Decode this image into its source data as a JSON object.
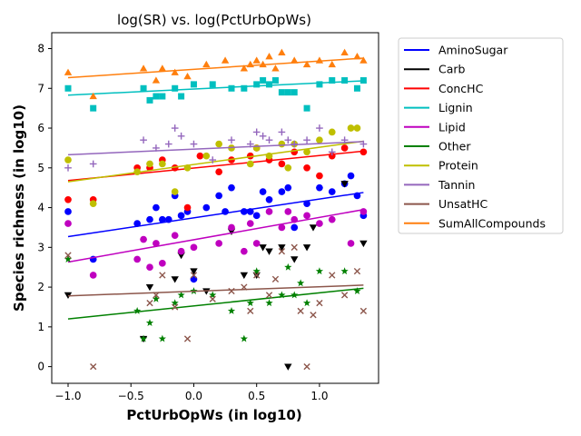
{
  "chart_data": {
    "type": "scatter",
    "title": "log(SR) vs. log(PctUrbOpWs)",
    "xlabel": "PctUrbOpWs (in log10)",
    "ylabel": "Species richness (in log10)",
    "xlim": [
      -1.13,
      1.47
    ],
    "ylim": [
      -0.42,
      8.4
    ],
    "xticks": [
      "−1.0",
      "−0.5",
      "0.0",
      "0.5",
      "1.0"
    ],
    "xtick_values": [
      -1.0,
      -0.5,
      0.0,
      0.5,
      1.0
    ],
    "yticks": [
      "0",
      "1",
      "2",
      "3",
      "4",
      "5",
      "6",
      "7",
      "8"
    ],
    "ytick_values": [
      0,
      1,
      2,
      3,
      4,
      5,
      6,
      7,
      8
    ],
    "grid": false,
    "legend_position": "outside-right",
    "series": [
      {
        "name": "AminoSugar",
        "color": "#0000ff",
        "marker": "circle",
        "fit": [
          3.27,
          4.38
        ],
        "points": [
          [
            -1.0,
            3.9
          ],
          [
            -0.8,
            2.7
          ],
          [
            -0.45,
            3.6
          ],
          [
            -0.35,
            3.7
          ],
          [
            -0.3,
            4.0
          ],
          [
            -0.25,
            3.7
          ],
          [
            -0.2,
            3.7
          ],
          [
            -0.15,
            4.3
          ],
          [
            -0.1,
            3.8
          ],
          [
            -0.05,
            3.9
          ],
          [
            0.0,
            2.2
          ],
          [
            0.1,
            4.0
          ],
          [
            0.2,
            4.3
          ],
          [
            0.25,
            3.9
          ],
          [
            0.3,
            4.5
          ],
          [
            0.4,
            3.9
          ],
          [
            0.45,
            3.9
          ],
          [
            0.5,
            3.8
          ],
          [
            0.55,
            4.4
          ],
          [
            0.6,
            4.2
          ],
          [
            0.7,
            4.4
          ],
          [
            0.75,
            4.5
          ],
          [
            0.8,
            3.5
          ],
          [
            0.9,
            4.1
          ],
          [
            1.0,
            4.5
          ],
          [
            1.1,
            4.4
          ],
          [
            1.2,
            4.6
          ],
          [
            1.25,
            4.8
          ],
          [
            1.3,
            4.3
          ],
          [
            1.35,
            3.8
          ]
        ]
      },
      {
        "name": "Carb",
        "color": "#000000",
        "marker": "triangle-down",
        "fit": [
          null,
          null
        ],
        "points": [
          [
            -1.0,
            1.8
          ],
          [
            -0.4,
            0.7
          ],
          [
            -0.35,
            2.0
          ],
          [
            -0.15,
            2.2
          ],
          [
            -0.1,
            2.8
          ],
          [
            0.0,
            2.4
          ],
          [
            0.1,
            1.9
          ],
          [
            0.3,
            3.4
          ],
          [
            0.4,
            2.3
          ],
          [
            0.5,
            2.3
          ],
          [
            0.55,
            3.0
          ],
          [
            0.6,
            2.9
          ],
          [
            0.7,
            3.0
          ],
          [
            0.75,
            0.0
          ],
          [
            0.8,
            2.7
          ],
          [
            0.9,
            3.0
          ],
          [
            0.95,
            3.5
          ],
          [
            1.2,
            4.6
          ],
          [
            1.35,
            3.1
          ]
        ]
      },
      {
        "name": "ConcHC",
        "color": "#ff0000",
        "marker": "circle",
        "fit": [
          4.68,
          5.42
        ],
        "points": [
          [
            -1.0,
            4.2
          ],
          [
            -0.8,
            4.2
          ],
          [
            -0.45,
            5.0
          ],
          [
            -0.35,
            5.0
          ],
          [
            -0.25,
            5.2
          ],
          [
            -0.15,
            5.0
          ],
          [
            -0.05,
            4.0
          ],
          [
            0.05,
            5.3
          ],
          [
            0.2,
            4.9
          ],
          [
            0.3,
            5.2
          ],
          [
            0.45,
            5.3
          ],
          [
            0.5,
            5.5
          ],
          [
            0.6,
            5.2
          ],
          [
            0.7,
            5.1
          ],
          [
            0.8,
            5.4
          ],
          [
            0.9,
            5.0
          ],
          [
            1.0,
            4.8
          ],
          [
            1.1,
            5.3
          ],
          [
            1.2,
            5.5
          ],
          [
            1.35,
            5.4
          ]
        ]
      },
      {
        "name": "Lignin",
        "color": "#00bfbf",
        "marker": "square",
        "fit": [
          6.83,
          7.19
        ],
        "points": [
          [
            -1.0,
            7.0
          ],
          [
            -0.8,
            6.5
          ],
          [
            -0.4,
            7.0
          ],
          [
            -0.35,
            6.7
          ],
          [
            -0.3,
            6.8
          ],
          [
            -0.25,
            6.8
          ],
          [
            -0.15,
            7.0
          ],
          [
            -0.1,
            6.8
          ],
          [
            0.0,
            7.1
          ],
          [
            0.15,
            7.1
          ],
          [
            0.3,
            7.0
          ],
          [
            0.4,
            7.0
          ],
          [
            0.5,
            7.1
          ],
          [
            0.55,
            7.2
          ],
          [
            0.6,
            7.1
          ],
          [
            0.65,
            7.2
          ],
          [
            0.7,
            6.9
          ],
          [
            0.75,
            6.9
          ],
          [
            0.8,
            6.9
          ],
          [
            0.9,
            6.5
          ],
          [
            1.0,
            7.1
          ],
          [
            1.1,
            7.2
          ],
          [
            1.2,
            7.2
          ],
          [
            1.3,
            7.0
          ],
          [
            1.35,
            7.2
          ]
        ]
      },
      {
        "name": "Lipid",
        "color": "#bf00bf",
        "marker": "circle",
        "fit": [
          2.63,
          3.95
        ],
        "points": [
          [
            -1.0,
            3.6
          ],
          [
            -0.8,
            2.3
          ],
          [
            -0.45,
            2.7
          ],
          [
            -0.4,
            3.2
          ],
          [
            -0.35,
            2.5
          ],
          [
            -0.3,
            3.1
          ],
          [
            -0.25,
            2.6
          ],
          [
            -0.15,
            3.3
          ],
          [
            -0.1,
            2.9
          ],
          [
            0.0,
            3.0
          ],
          [
            0.2,
            3.1
          ],
          [
            0.3,
            3.5
          ],
          [
            0.4,
            2.9
          ],
          [
            0.45,
            3.6
          ],
          [
            0.5,
            3.1
          ],
          [
            0.6,
            3.9
          ],
          [
            0.7,
            3.5
          ],
          [
            0.75,
            3.9
          ],
          [
            0.8,
            3.7
          ],
          [
            0.9,
            3.8
          ],
          [
            1.0,
            3.6
          ],
          [
            1.1,
            3.7
          ],
          [
            1.25,
            3.1
          ],
          [
            1.35,
            3.9
          ]
        ]
      },
      {
        "name": "Other",
        "color": "#008000",
        "marker": "star",
        "fit": [
          1.2,
          1.97
        ],
        "points": [
          [
            -1.0,
            2.7
          ],
          [
            -0.45,
            1.4
          ],
          [
            -0.4,
            0.7
          ],
          [
            -0.35,
            1.1
          ],
          [
            -0.3,
            1.7
          ],
          [
            -0.25,
            0.7
          ],
          [
            -0.15,
            1.6
          ],
          [
            -0.1,
            1.8
          ],
          [
            0.0,
            1.9
          ],
          [
            0.15,
            1.8
          ],
          [
            0.3,
            1.4
          ],
          [
            0.4,
            0.7
          ],
          [
            0.45,
            1.6
          ],
          [
            0.5,
            2.4
          ],
          [
            0.6,
            1.6
          ],
          [
            0.7,
            1.8
          ],
          [
            0.75,
            2.5
          ],
          [
            0.8,
            1.8
          ],
          [
            0.85,
            2.1
          ],
          [
            0.9,
            1.6
          ],
          [
            1.0,
            2.4
          ],
          [
            1.2,
            2.4
          ],
          [
            1.3,
            1.9
          ]
        ]
      },
      {
        "name": "Protein",
        "color": "#bfbf00",
        "marker": "circle",
        "fit": [
          4.65,
          5.67
        ],
        "points": [
          [
            -1.0,
            5.2
          ],
          [
            -0.8,
            4.1
          ],
          [
            -0.45,
            4.9
          ],
          [
            -0.35,
            5.1
          ],
          [
            -0.25,
            5.1
          ],
          [
            -0.15,
            4.4
          ],
          [
            -0.05,
            5.0
          ],
          [
            0.1,
            5.3
          ],
          [
            0.2,
            5.6
          ],
          [
            0.3,
            5.5
          ],
          [
            0.45,
            5.1
          ],
          [
            0.5,
            5.5
          ],
          [
            0.6,
            5.3
          ],
          [
            0.7,
            5.6
          ],
          [
            0.75,
            5.0
          ],
          [
            0.8,
            5.6
          ],
          [
            0.9,
            5.4
          ],
          [
            1.0,
            5.7
          ],
          [
            1.1,
            5.9
          ],
          [
            1.25,
            6.0
          ],
          [
            1.3,
            6.0
          ]
        ]
      },
      {
        "name": "Tannin",
        "color": "#9467bd",
        "marker": "plus",
        "fit": [
          5.33,
          5.66
        ],
        "points": [
          [
            -1.0,
            5.0
          ],
          [
            -0.8,
            5.1
          ],
          [
            -0.4,
            5.7
          ],
          [
            -0.3,
            5.5
          ],
          [
            -0.2,
            5.6
          ],
          [
            -0.15,
            6.0
          ],
          [
            -0.1,
            5.8
          ],
          [
            0.0,
            5.6
          ],
          [
            0.15,
            5.2
          ],
          [
            0.3,
            5.7
          ],
          [
            0.45,
            5.6
          ],
          [
            0.5,
            5.9
          ],
          [
            0.55,
            5.8
          ],
          [
            0.6,
            5.7
          ],
          [
            0.7,
            5.9
          ],
          [
            0.75,
            5.7
          ],
          [
            0.8,
            5.6
          ],
          [
            0.9,
            5.7
          ],
          [
            1.0,
            6.0
          ],
          [
            1.1,
            5.4
          ],
          [
            1.2,
            5.7
          ],
          [
            1.35,
            5.6
          ]
        ]
      },
      {
        "name": "UnsatHC",
        "color": "#8c564b",
        "marker": "x",
        "fit": [
          1.78,
          2.05
        ],
        "points": [
          [
            -1.0,
            2.8
          ],
          [
            -0.8,
            0.0
          ],
          [
            -0.35,
            1.6
          ],
          [
            -0.3,
            1.8
          ],
          [
            -0.25,
            2.3
          ],
          [
            -0.15,
            1.5
          ],
          [
            -0.05,
            0.7
          ],
          [
            0.0,
            2.3
          ],
          [
            0.15,
            1.7
          ],
          [
            0.3,
            1.9
          ],
          [
            0.4,
            2.0
          ],
          [
            0.45,
            1.4
          ],
          [
            0.5,
            2.3
          ],
          [
            0.6,
            1.8
          ],
          [
            0.65,
            2.2
          ],
          [
            0.7,
            2.9
          ],
          [
            0.8,
            3.0
          ],
          [
            0.85,
            1.4
          ],
          [
            0.9,
            0.0
          ],
          [
            0.95,
            1.3
          ],
          [
            1.0,
            1.6
          ],
          [
            1.1,
            2.3
          ],
          [
            1.2,
            1.8
          ],
          [
            1.3,
            2.4
          ],
          [
            1.35,
            1.4
          ]
        ]
      },
      {
        "name": "SumAllCompounds",
        "color": "#ff7f0e",
        "marker": "triangle-up",
        "fit": [
          7.27,
          7.76
        ],
        "points": [
          [
            -1.0,
            7.4
          ],
          [
            -0.8,
            6.8
          ],
          [
            -0.4,
            7.5
          ],
          [
            -0.3,
            7.2
          ],
          [
            -0.25,
            7.5
          ],
          [
            -0.15,
            7.4
          ],
          [
            -0.05,
            7.3
          ],
          [
            0.1,
            7.6
          ],
          [
            0.25,
            7.7
          ],
          [
            0.4,
            7.5
          ],
          [
            0.45,
            7.6
          ],
          [
            0.5,
            7.7
          ],
          [
            0.55,
            7.6
          ],
          [
            0.6,
            7.8
          ],
          [
            0.65,
            7.5
          ],
          [
            0.7,
            7.9
          ],
          [
            0.8,
            7.7
          ],
          [
            0.9,
            7.6
          ],
          [
            1.0,
            7.7
          ],
          [
            1.1,
            7.6
          ],
          [
            1.2,
            7.9
          ],
          [
            1.3,
            7.8
          ],
          [
            1.35,
            7.7
          ]
        ]
      }
    ]
  }
}
